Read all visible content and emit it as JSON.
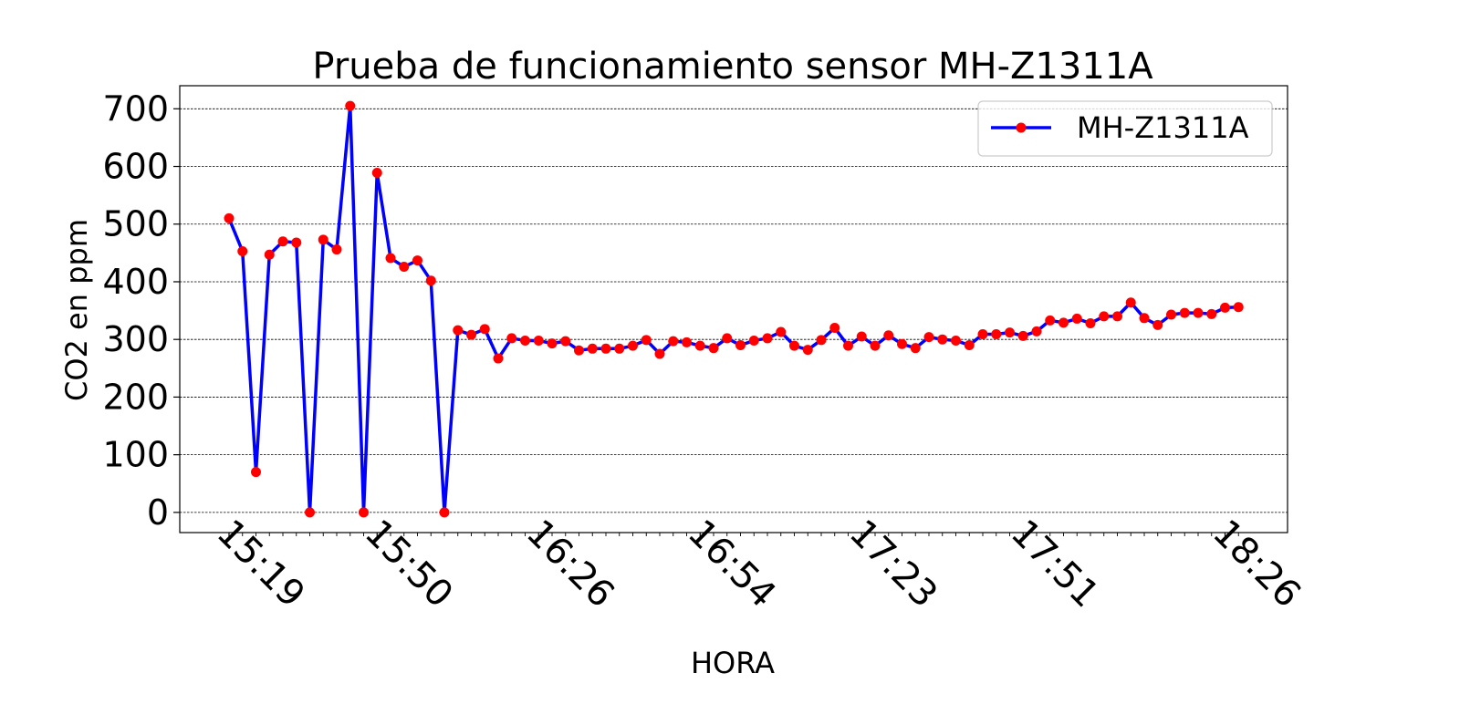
{
  "chart_data": {
    "type": "line",
    "title": "Prueba de funcionamiento sensor MH-Z1311A",
    "xlabel": "HORA",
    "ylabel": "CO2 en ppm",
    "ylim": [
      -35,
      740
    ],
    "yticks": [
      0,
      100,
      200,
      300,
      400,
      500,
      600,
      700
    ],
    "xtick_labels": [
      {
        "index": 0,
        "label": "15:19"
      },
      {
        "index": 11,
        "label": "15:50"
      },
      {
        "index": 23,
        "label": "16:26"
      },
      {
        "index": 35,
        "label": "16:54"
      },
      {
        "index": 47,
        "label": "17:23"
      },
      {
        "index": 59,
        "label": "17:51"
      },
      {
        "index": 74,
        "label": "18:26"
      }
    ],
    "grid": "horizontal dashed",
    "legend": "top-right",
    "line_color": "#0000ff",
    "marker_color": "#ff0000",
    "series": [
      {
        "name": "MH-Z1311A",
        "values": [
          510,
          453,
          70,
          447,
          470,
          468,
          0,
          473,
          456,
          705,
          0,
          589,
          441,
          426,
          437,
          402,
          0,
          316,
          308,
          318,
          267,
          302,
          298,
          298,
          293,
          297,
          281,
          284,
          284,
          284,
          289,
          299,
          275,
          297,
          295,
          289,
          285,
          302,
          290,
          298,
          302,
          313,
          289,
          282,
          299,
          320,
          289,
          305,
          289,
          307,
          292,
          285,
          304,
          300,
          298,
          290,
          309,
          309,
          312,
          306,
          314,
          333,
          329,
          336,
          328,
          340,
          340,
          364,
          337,
          325,
          343,
          346,
          346,
          344,
          355,
          356
        ]
      }
    ]
  }
}
